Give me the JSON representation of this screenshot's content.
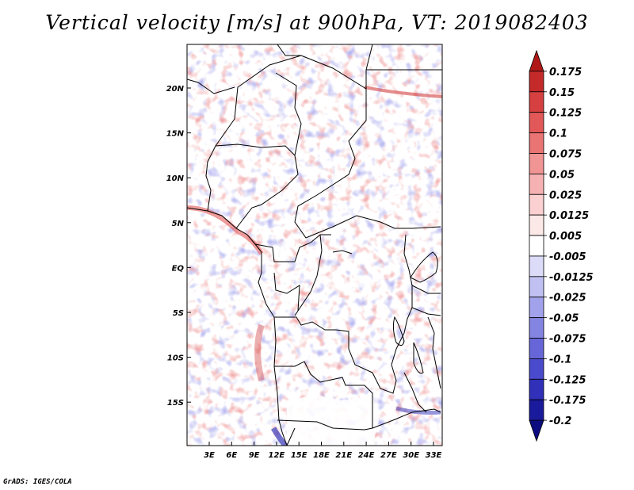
{
  "title": "Vertical velocity [m/s] at 900hPa, VT: 2019082403",
  "credit": "GrADS: IGES/COLA",
  "map": {
    "lat_ticks": [
      "20N",
      "15N",
      "10N",
      "5N",
      "EQ",
      "5S",
      "10S",
      "15S"
    ],
    "lon_ticks": [
      "3E",
      "6E",
      "9E",
      "12E",
      "15E",
      "18E",
      "21E",
      "24E",
      "27E",
      "30E",
      "33E"
    ],
    "lon_range": [
      0,
      34.5
    ],
    "lat_range": [
      -20,
      25
    ]
  },
  "colorbar": {
    "labels": [
      "0.175",
      "0.15",
      "0.125",
      "0.1",
      "0.075",
      "0.05",
      "0.025",
      "0.0125",
      "0.005",
      "-0.005",
      "-0.0125",
      "-0.025",
      "-0.05",
      "-0.075",
      "-0.1",
      "-0.125",
      "-0.175",
      "-0.2"
    ],
    "colors": [
      "#b01818",
      "#c42a2a",
      "#d64040",
      "#e25858",
      "#ea7474",
      "#f09494",
      "#f6b2b2",
      "#fbd0d0",
      "#fde8e8",
      "#ffffff",
      "#dcdcf8",
      "#c0c0f2",
      "#a2a2ec",
      "#8484e2",
      "#6666d8",
      "#4a4acc",
      "#3030b8",
      "#1a1a9c",
      "#0c0c80"
    ]
  }
}
